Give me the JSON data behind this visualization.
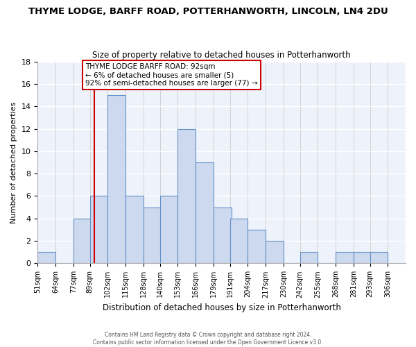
{
  "title": "THYME LODGE, BARFF ROAD, POTTERHANWORTH, LINCOLN, LN4 2DU",
  "subtitle": "Size of property relative to detached houses in Potterhanworth",
  "xlabel": "Distribution of detached houses by size in Potterhanworth",
  "ylabel": "Number of detached properties",
  "bin_labels": [
    "51sqm",
    "64sqm",
    "77sqm",
    "89sqm",
    "102sqm",
    "115sqm",
    "128sqm",
    "140sqm",
    "153sqm",
    "166sqm",
    "179sqm",
    "191sqm",
    "204sqm",
    "217sqm",
    "230sqm",
    "242sqm",
    "255sqm",
    "268sqm",
    "281sqm",
    "293sqm",
    "306sqm"
  ],
  "bin_edges": [
    51,
    64,
    77,
    89,
    102,
    115,
    128,
    140,
    153,
    166,
    179,
    191,
    204,
    217,
    230,
    242,
    255,
    268,
    281,
    293,
    306
  ],
  "counts": [
    1,
    0,
    4,
    6,
    15,
    6,
    5,
    6,
    12,
    9,
    5,
    4,
    3,
    2,
    0,
    1,
    0,
    1,
    1,
    1
  ],
  "bar_color": "#cdd9ee",
  "bar_edge_color": "#6090c8",
  "reference_line_x": 92,
  "reference_line_color": "#cc0000",
  "annotation_line1": "THYME LODGE BARFF ROAD: 92sqm",
  "annotation_line2": "← 6% of detached houses are smaller (5)",
  "annotation_line3": "92% of semi-detached houses are larger (77) →",
  "annotation_box_color": "white",
  "annotation_box_edge_color": "#cc0000",
  "ylim": [
    0,
    18
  ],
  "yticks": [
    0,
    2,
    4,
    6,
    8,
    10,
    12,
    14,
    16,
    18
  ],
  "footer_line1": "Contains HM Land Registry data © Crown copyright and database right 2024.",
  "footer_line2": "Contains public sector information licensed under the Open Government Licence v3.0.",
  "background_color": "#ffffff",
  "plot_background_color": "#eef2fa",
  "grid_color_h": "#ffffff",
  "grid_color_v": "#cccccc"
}
